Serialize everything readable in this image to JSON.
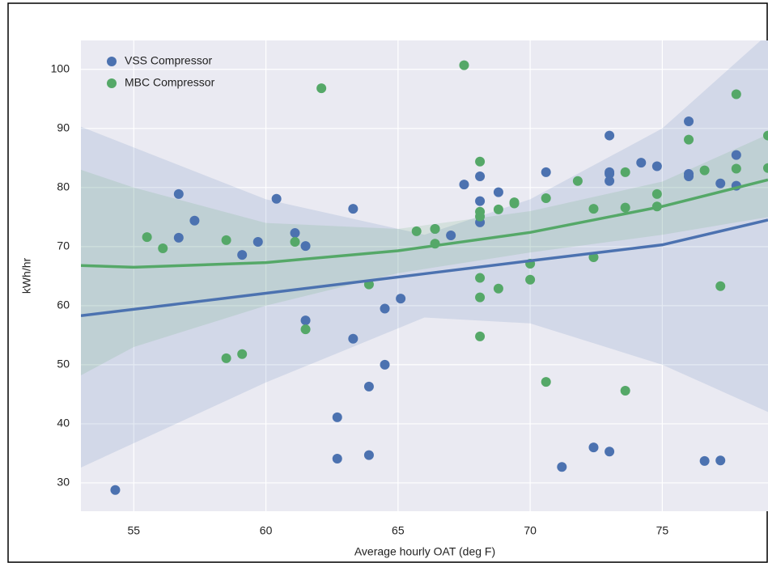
{
  "chart_data": {
    "type": "scatter",
    "x_label": "Average hourly OAT (deg F)",
    "y_label": "kWh/hr",
    "xlim": [
      53,
      79
    ],
    "ylim": [
      25.2,
      104.9
    ],
    "xticks": [
      55,
      60,
      65,
      70,
      75
    ],
    "yticks": [
      30,
      40,
      50,
      60,
      70,
      80,
      90,
      100
    ],
    "grid": true,
    "legend": "upper left",
    "series": [
      {
        "name": "VSS Compressor",
        "color": "#4c72b0",
        "x": [
          54.3,
          56.7,
          56.7,
          57.3,
          59.1,
          59.7,
          60.4,
          61.1,
          61.5,
          61.5,
          63.3,
          63.3,
          62.7,
          62.7,
          63.9,
          63.9,
          64.5,
          64.5,
          65.1,
          66.4,
          67.0,
          67.5,
          68.1,
          68.1,
          68.1,
          68.8,
          70.6,
          71.2,
          72.4,
          73.0,
          73.0,
          73.0,
          73.0,
          73.0,
          74.2,
          74.8,
          76.0,
          76.0,
          76.0,
          76.6,
          77.2,
          77.2,
          77.8,
          77.8
        ],
        "values": [
          28.8,
          78.9,
          71.5,
          74.4,
          68.6,
          70.8,
          78.1,
          72.3,
          70.1,
          57.5,
          76.4,
          54.4,
          41.1,
          34.1,
          46.3,
          34.7,
          50.0,
          59.5,
          61.2,
          73.0,
          71.9,
          80.5,
          81.9,
          77.7,
          74.1,
          79.2,
          82.6,
          32.7,
          36.0,
          35.3,
          88.8,
          82.6,
          82.3,
          81.1,
          84.2,
          83.6,
          91.2,
          82.3,
          81.9,
          33.7,
          33.8,
          80.7,
          85.5,
          80.3
        ],
        "fit": {
          "x": [
            53,
            60,
            66,
            70,
            75,
            79
          ],
          "y": [
            58.3,
            62.1,
            65.4,
            67.6,
            70.3,
            74.5
          ],
          "lower": [
            32.6,
            47,
            58,
            57,
            50,
            42
          ],
          "upper": [
            90.3,
            78,
            72,
            78,
            90,
            106
          ]
        }
      },
      {
        "name": "MBC Compressor",
        "color": "#55a868",
        "x": [
          55.5,
          56.1,
          58.5,
          58.5,
          59.1,
          61.1,
          61.5,
          62.1,
          63.9,
          65.7,
          66.4,
          66.4,
          67.5,
          68.1,
          68.1,
          68.1,
          68.1,
          68.1,
          68.1,
          68.8,
          68.8,
          69.4,
          69.4,
          70.0,
          70.0,
          70.6,
          70.6,
          71.8,
          72.4,
          72.4,
          73.6,
          73.6,
          73.6,
          74.8,
          74.8,
          76.0,
          76.6,
          77.2,
          77.8,
          77.8,
          79.0,
          79.0
        ],
        "values": [
          71.6,
          69.7,
          71.1,
          51.1,
          51.8,
          70.8,
          56.0,
          96.8,
          63.6,
          72.6,
          73.0,
          70.5,
          100.7,
          84.4,
          75.9,
          75.1,
          64.7,
          61.4,
          54.8,
          76.3,
          62.9,
          77.5,
          77.3,
          67.1,
          64.4,
          78.2,
          47.1,
          81.1,
          76.4,
          68.2,
          82.6,
          76.6,
          45.6,
          78.9,
          76.8,
          88.1,
          82.9,
          63.3,
          95.8,
          83.2,
          88.8,
          83.3
        ],
        "fit": {
          "x": [
            53,
            55,
            60,
            65,
            70,
            75,
            79
          ],
          "y": [
            66.8,
            66.5,
            67.3,
            69.3,
            72.4,
            76.8,
            81.3
          ],
          "lower": [
            48.2,
            53,
            60,
            65.5,
            69,
            72,
            75
          ],
          "upper": [
            83,
            80,
            74,
            73,
            76,
            81,
            89
          ]
        }
      }
    ]
  }
}
